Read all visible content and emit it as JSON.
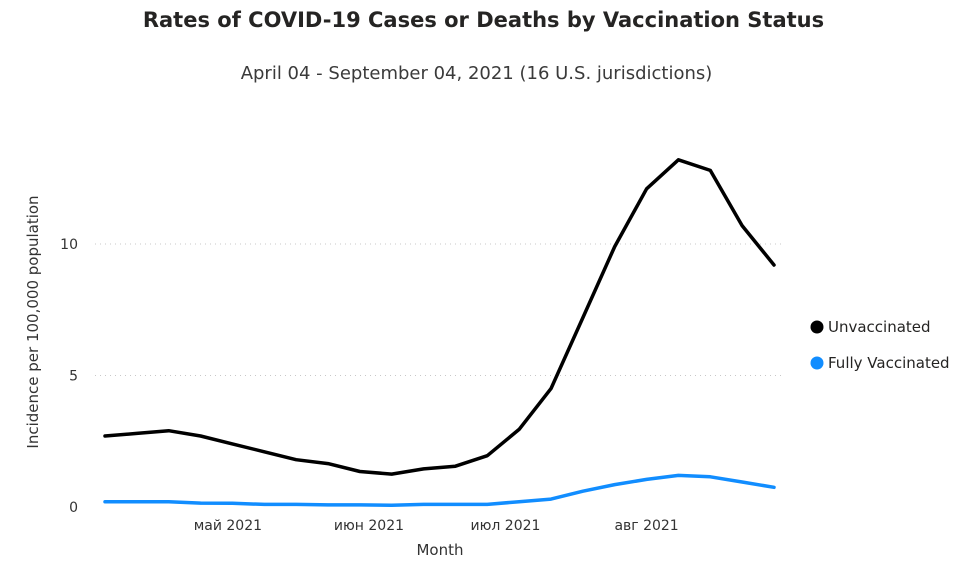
{
  "chart_data": {
    "type": "line",
    "title": "Rates of COVID-19 Cases or Deaths by Vaccination Status",
    "subtitle": "April 04 - September 04, 2021 (16 U.S. jurisdictions)",
    "xlabel": "Month",
    "ylabel": "Incidence per 100,000 population",
    "ylim": [
      0,
      14
    ],
    "yticks": [
      0,
      5,
      10
    ],
    "xlim": [
      "2021-04-04",
      "2021-09-04"
    ],
    "xticks": [
      {
        "date": "2021-05-01",
        "label": "май 2021"
      },
      {
        "date": "2021-06-01",
        "label": "июн 2021"
      },
      {
        "date": "2021-07-01",
        "label": "июл 2021"
      },
      {
        "date": "2021-08-01",
        "label": "авг 2021"
      }
    ],
    "grid": "horizontal-dotted",
    "legend_position": "right",
    "x": [
      "2021-04-04",
      "2021-04-11",
      "2021-04-18",
      "2021-04-25",
      "2021-05-02",
      "2021-05-09",
      "2021-05-16",
      "2021-05-23",
      "2021-05-30",
      "2021-06-06",
      "2021-06-13",
      "2021-06-20",
      "2021-06-27",
      "2021-07-04",
      "2021-07-11",
      "2021-07-18",
      "2021-07-25",
      "2021-08-01",
      "2021-08-08",
      "2021-08-15",
      "2021-08-22",
      "2021-08-29"
    ],
    "series": [
      {
        "name": "Unvaccinated",
        "color": "#000000",
        "values": [
          2.7,
          2.8,
          2.9,
          2.7,
          2.4,
          2.1,
          1.8,
          1.65,
          1.35,
          1.25,
          1.45,
          1.55,
          1.95,
          2.95,
          4.5,
          7.2,
          9.9,
          12.1,
          13.2,
          12.8,
          10.7,
          9.2
        ]
      },
      {
        "name": "Fully Vaccinated",
        "color": "#118DFF",
        "values": [
          0.2,
          0.2,
          0.2,
          0.15,
          0.14,
          0.1,
          0.1,
          0.08,
          0.08,
          0.07,
          0.1,
          0.1,
          0.1,
          0.2,
          0.3,
          0.6,
          0.85,
          1.05,
          1.2,
          1.15,
          0.95,
          0.75
        ]
      }
    ]
  }
}
